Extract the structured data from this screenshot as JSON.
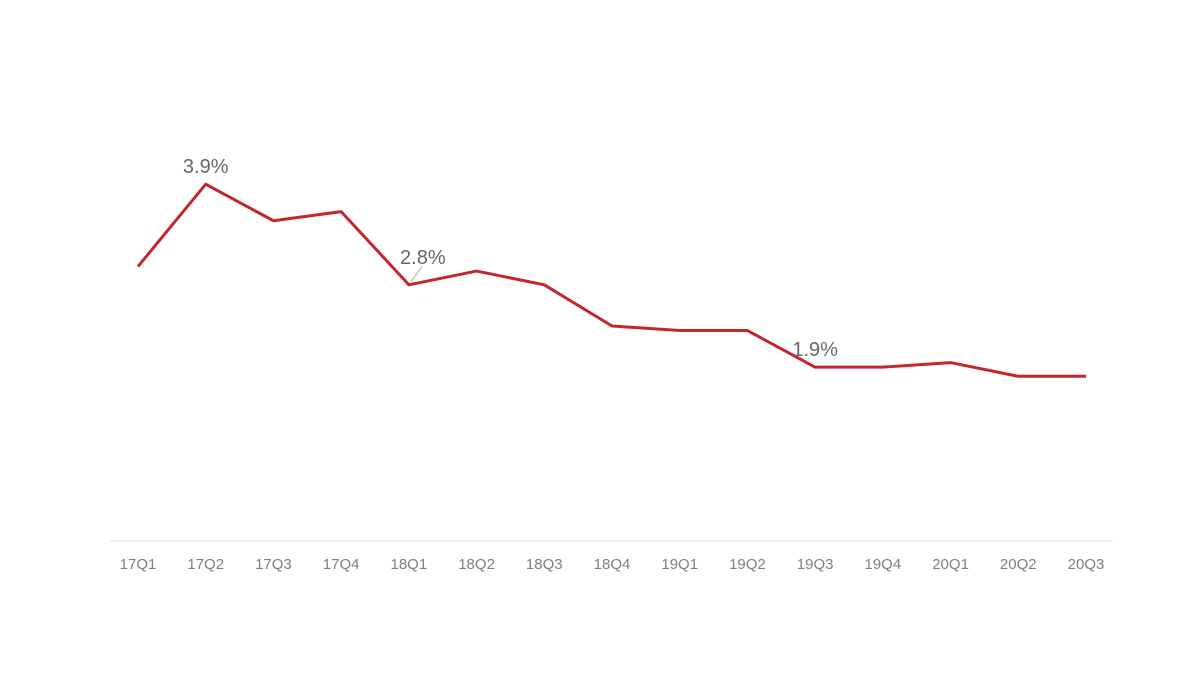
{
  "chart_data": {
    "type": "line",
    "title": "",
    "xlabel": "",
    "ylabel": "",
    "unit": "%",
    "categories": [
      "17Q1",
      "17Q2",
      "17Q3",
      "17Q4",
      "18Q1",
      "18Q2",
      "18Q3",
      "18Q4",
      "19Q1",
      "19Q2",
      "19Q3",
      "19Q4",
      "20Q1",
      "20Q2",
      "20Q3"
    ],
    "values": [
      3.0,
      3.9,
      3.5,
      3.6,
      2.8,
      2.95,
      2.8,
      2.35,
      2.3,
      2.3,
      1.9,
      1.9,
      1.95,
      1.8,
      1.8
    ],
    "labeled_points": [
      {
        "index": 1,
        "text": "3.9%",
        "placement": "above",
        "leader": false
      },
      {
        "index": 4,
        "text": "2.8%",
        "placement": "above-right",
        "leader": true
      },
      {
        "index": 10,
        "text": "1.9%",
        "placement": "above",
        "leader": false
      }
    ],
    "ylim": [
      0,
      4.4
    ],
    "axis_baseline_value": 0,
    "grid": false,
    "legend": "none",
    "colors": {
      "line": "#c1272d",
      "data_label": "#666666",
      "tick_label": "#7f7f7f",
      "axis_line": "#ececec",
      "leader_line": "#c6c6c6",
      "background": "#ffffff"
    }
  }
}
